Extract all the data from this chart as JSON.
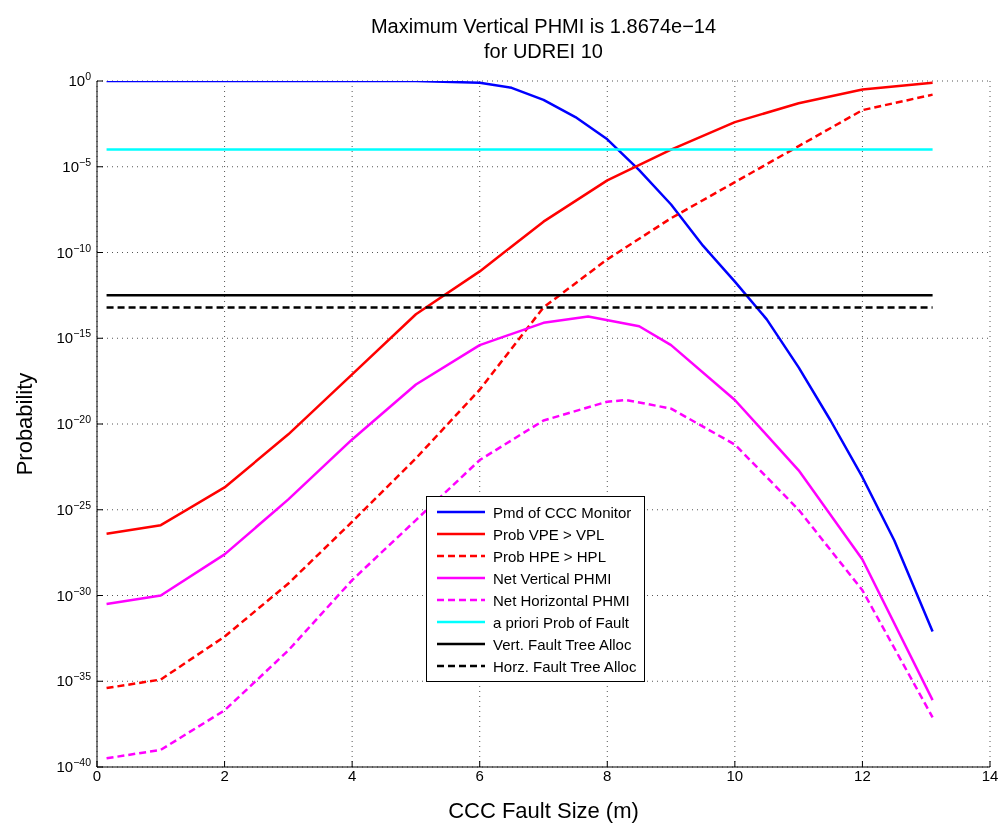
{
  "chart_data": {
    "type": "line",
    "title": "Maximum Vertical PHMI is 1.8674e−14\nfor UDREI 10",
    "xlabel": "CCC Fault Size (m)",
    "ylabel": "Probability",
    "log": "y",
    "grid": true,
    "legend": "bottom",
    "marker": "none",
    "xlim": [
      0,
      14
    ],
    "xticks": [
      0,
      2,
      4,
      6,
      8,
      10,
      12,
      14
    ],
    "ylim": [
      1e-40,
      1
    ],
    "yticks": [
      {
        "value": 1,
        "label": "10$^{0}$"
      },
      {
        "value": 1e-05,
        "label": "10$^{−5}$"
      },
      {
        "value": 1e-10,
        "label": "10$^{−10}$"
      },
      {
        "value": 1e-15,
        "label": "10$^{−15}$"
      },
      {
        "value": 1e-20,
        "label": "10$^{−20}$"
      },
      {
        "value": 1e-25,
        "label": "10$^{−25}$"
      },
      {
        "value": 1e-30,
        "label": "10$^{−30}$"
      },
      {
        "value": 1e-35,
        "label": "10$^{−35}$"
      },
      {
        "value": 1e-40,
        "label": "10$^{−40}$"
      }
    ],
    "series": [
      {
        "name": "Pmd of CCC Monitor",
        "color": "#0000ff",
        "line_style": "solid",
        "x": [
          0.15,
          1,
          2,
          3,
          4,
          5,
          6,
          6.5,
          7,
          7.5,
          8,
          8.5,
          9,
          9.5,
          10,
          10.5,
          11,
          11.5,
          12,
          12.5,
          13.1
        ],
        "values": [
          1,
          1,
          1,
          1,
          1,
          1,
          0.79,
          0.4,
          0.079,
          0.0079,
          0.0004,
          6.3e-06,
          6.3e-08,
          2.5e-10,
          2e-12,
          1.26e-14,
          2e-17,
          1.6e-20,
          7.9e-24,
          1.6e-27,
          7.9e-33
        ]
      },
      {
        "name": "Prob VPE > VPL",
        "color": "#ff0000",
        "line_style": "solid",
        "x": [
          0.15,
          1,
          2,
          3,
          4,
          5,
          6,
          7,
          8,
          9,
          10,
          11,
          12,
          13.1
        ],
        "values": [
          4e-27,
          1.26e-26,
          2e-24,
          2.5e-21,
          7.9e-18,
          2.5e-14,
          7.9e-12,
          6.3e-09,
          1.6e-06,
          0.0001,
          0.004,
          0.05,
          0.32,
          0.79
        ]
      },
      {
        "name": "Prob HPE > HPL",
        "color": "#ff0000",
        "line_style": "dashed",
        "x": [
          0.15,
          1,
          2,
          3,
          4,
          5,
          6,
          7,
          8,
          9,
          10,
          11,
          12,
          13.1
        ],
        "values": [
          4e-36,
          1.26e-35,
          4e-33,
          5e-30,
          2e-26,
          1e-22,
          1e-18,
          6.3e-14,
          4e-11,
          1e-08,
          1.26e-06,
          0.00016,
          0.02,
          0.16
        ]
      },
      {
        "name": "Net Vertical PHMI",
        "color": "#ff00ff",
        "line_style": "solid",
        "x": [
          0.15,
          1,
          2,
          3,
          4,
          5,
          6,
          7,
          7.7,
          8.5,
          9,
          10,
          11,
          12,
          13.1
        ],
        "values": [
          3.2e-31,
          1e-30,
          2.5e-28,
          4e-25,
          1.26e-21,
          2e-18,
          4e-16,
          7.9e-15,
          1.87e-14,
          5e-15,
          4e-16,
          2.5e-19,
          2e-23,
          1.26e-28,
          7.9e-37
        ]
      },
      {
        "name": "Net Horizontal PHMI",
        "color": "#ff00ff",
        "line_style": "dashed",
        "x": [
          0.15,
          1,
          2,
          3,
          4,
          5,
          6,
          7,
          8,
          8.3,
          9,
          10,
          11,
          12,
          13.1
        ],
        "values": [
          3.2e-40,
          1e-39,
          2e-37,
          6.3e-34,
          7.9e-30,
          2.5e-26,
          7.9e-23,
          1.6e-20,
          2e-19,
          2.5e-19,
          7.9e-20,
          6.3e-22,
          1e-25,
          2e-30,
          7.9e-38
        ]
      },
      {
        "name": "a priori Prob of Fault",
        "color": "#00ffff",
        "line_style": "solid",
        "x": [
          0.15,
          13.1
        ],
        "values": [
          0.0001,
          0.0001
        ]
      },
      {
        "name": "Vert. Fault Tree Alloc",
        "color": "#000000",
        "line_style": "solid",
        "x": [
          0.15,
          13.1
        ],
        "values": [
          3.2e-13,
          3.2e-13
        ]
      },
      {
        "name": "Horz. Fault Tree Alloc",
        "color": "#000000",
        "line_style": "dashed",
        "x": [
          0.15,
          13.1
        ],
        "values": [
          6.3e-14,
          6.3e-14
        ]
      }
    ]
  }
}
